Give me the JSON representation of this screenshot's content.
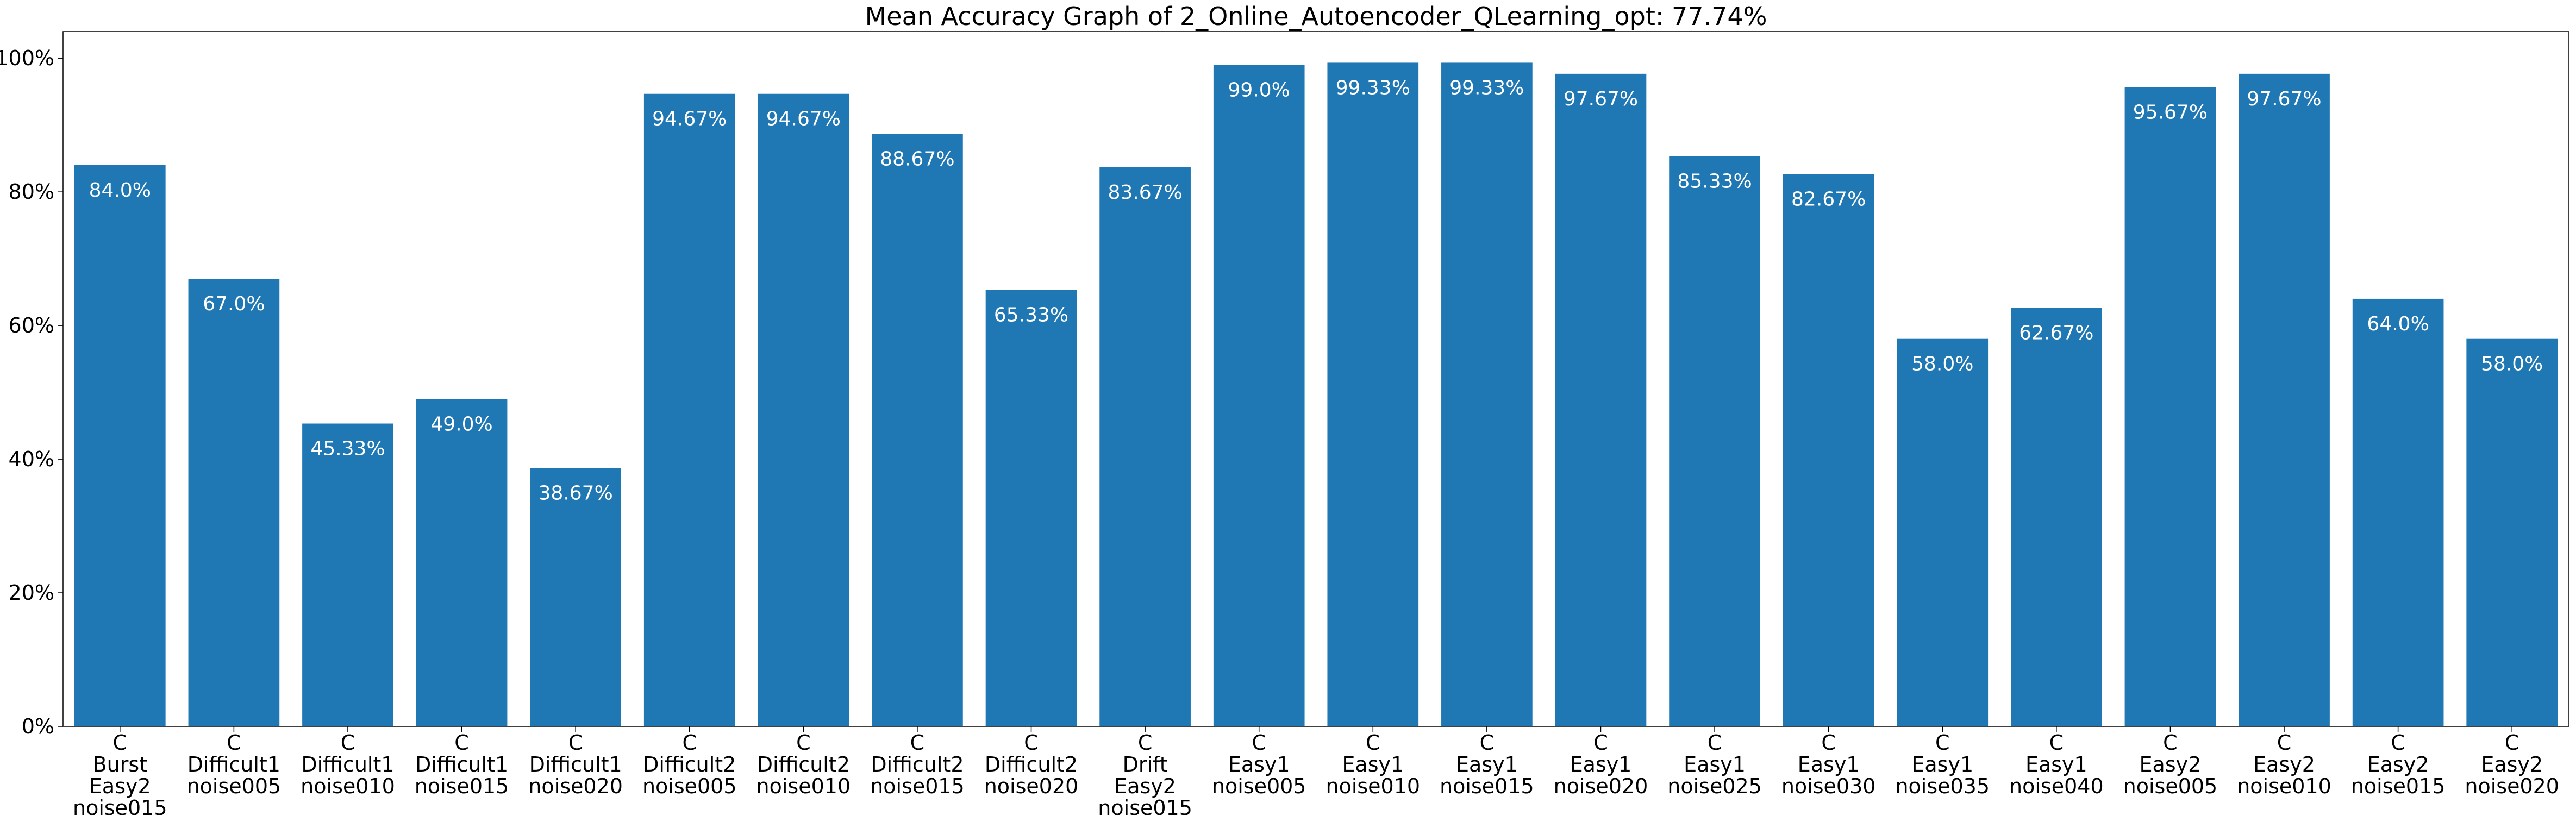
{
  "chart_data": {
    "type": "bar",
    "title": "Mean Accuracy Graph of 2_Online_Autoencoder_QLearning_opt: 77.74%",
    "xlabel": "",
    "ylabel": "",
    "ylim": [
      0,
      104
    ],
    "y_ticks": [
      0,
      20,
      40,
      60,
      80,
      100
    ],
    "y_tick_labels": [
      "0%",
      "20%",
      "40%",
      "60%",
      "80%",
      "100%"
    ],
    "grid": false,
    "bar_color": "#1f77b4",
    "label_color": "#ffffff",
    "categories": [
      "C\nBurst\nEasy2\nnoise015",
      "C\nDifficult1\nnoise005",
      "C\nDifficult1\nnoise010",
      "C\nDifficult1\nnoise015",
      "C\nDifficult1\nnoise020",
      "C\nDifficult2\nnoise005",
      "C\nDifficult2\nnoise010",
      "C\nDifficult2\nnoise015",
      "C\nDifficult2\nnoise020",
      "C\nDrift\nEasy2\nnoise015",
      "C\nEasy1\nnoise005",
      "C\nEasy1\nnoise010",
      "C\nEasy1\nnoise015",
      "C\nEasy1\nnoise020",
      "C\nEasy1\nnoise025",
      "C\nEasy1\nnoise030",
      "C\nEasy1\nnoise035",
      "C\nEasy1\nnoise040",
      "C\nEasy2\nnoise005",
      "C\nEasy2\nnoise010",
      "C\nEasy2\nnoise015",
      "C\nEasy2\nnoise020"
    ],
    "values": [
      84.0,
      67.0,
      45.33,
      49.0,
      38.67,
      94.67,
      94.67,
      88.67,
      65.33,
      83.67,
      99.0,
      99.33,
      99.33,
      97.67,
      85.33,
      82.67,
      58.0,
      62.67,
      95.67,
      97.67,
      64.0,
      58.0
    ],
    "value_labels": [
      "84.0%",
      "67.0%",
      "45.33%",
      "49.0%",
      "38.67%",
      "94.67%",
      "94.67%",
      "88.67%",
      "65.33%",
      "83.67%",
      "99.0%",
      "99.33%",
      "99.33%",
      "97.67%",
      "85.33%",
      "82.67%",
      "58.0%",
      "62.67%",
      "95.67%",
      "97.67%",
      "64.0%",
      "58.0%"
    ]
  }
}
